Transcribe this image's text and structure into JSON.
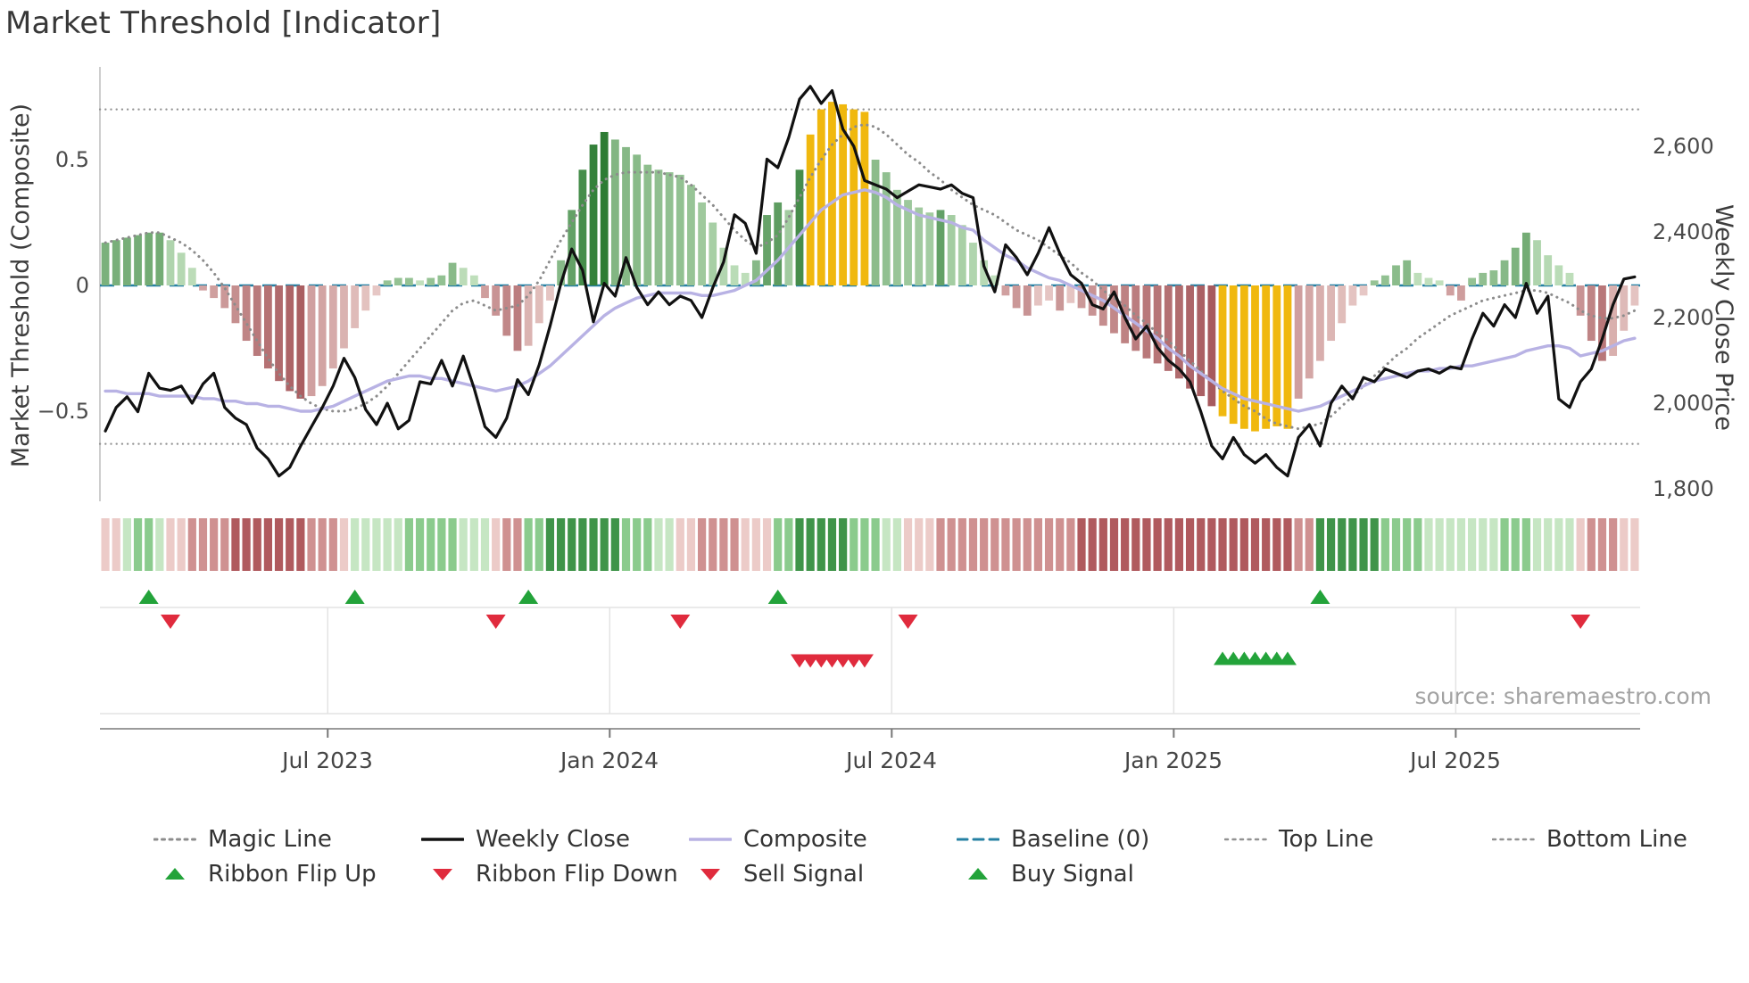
{
  "colors": {
    "background": "#ffffff",
    "weekly_close": "#111111",
    "composite_line": "#b8b2e4",
    "magic_line": "#8c8c8c",
    "baseline": "#2580a3",
    "band_lines": "#929292",
    "gold": "#f0b80e",
    "green_light": "#d4edcf",
    "green_dark": "#2d7c33",
    "red_light": "#f1dad6",
    "red_dark": "#9c474c",
    "signal_green": "#23a33a",
    "signal_red": "#e02b3d",
    "grid": "#e3e3e3",
    "spine": "#bdbdbd",
    "ribbon": {
      "R1": "#eccbc8",
      "R2": "#cf9191",
      "R3": "#b05a5e",
      "G1": "#c6e6c3",
      "G2": "#8bcb8d",
      "G3": "#3f9449"
    }
  },
  "chart_data": {
    "type": "bar+line",
    "title": "Market Threshold [Indicator]",
    "source_credit": "source: sharemaestro.com",
    "axes": {
      "left_label": "Market Threshold (Composite)",
      "right_label": "Weekly Close Price",
      "left_ticks": [
        "0.5",
        "0",
        "−0.5"
      ],
      "right_ticks": [
        "2,600",
        "2,400",
        "2,200",
        "2,000",
        "1,800"
      ],
      "x_ticks": [
        "Jul 2023",
        "Jan 2024",
        "Jul 2024",
        "Jan 2025",
        "Jul 2025"
      ]
    },
    "legend": {
      "row1": [
        "Magic Line",
        "Weekly Close",
        "Composite",
        "Baseline (0)",
        "Top Line",
        "Bottom Line"
      ],
      "row2": [
        "Ribbon Flip Up",
        "Ribbon Flip Down",
        "Sell Signal",
        "Buy Signal"
      ]
    },
    "n_weeks": 142,
    "x_tick_weeks": [
      21,
      47,
      73,
      99,
      125
    ],
    "top_line": 0.7,
    "bottom_line": -0.63,
    "baseline": 0,
    "left_axis_range": [
      -0.85,
      0.87
    ],
    "right_axis_range": [
      1760,
      2760
    ],
    "bars": [
      0.17,
      0.18,
      0.19,
      0.2,
      0.21,
      0.21,
      0.18,
      0.13,
      0.07,
      -0.02,
      -0.05,
      -0.09,
      -0.15,
      -0.22,
      -0.28,
      -0.33,
      -0.38,
      -0.42,
      -0.45,
      -0.44,
      -0.4,
      -0.33,
      -0.25,
      -0.17,
      -0.1,
      -0.04,
      0.02,
      0.03,
      0.03,
      0.02,
      0.03,
      0.04,
      0.09,
      0.07,
      0.04,
      -0.05,
      -0.12,
      -0.2,
      -0.26,
      -0.24,
      -0.15,
      -0.06,
      0.1,
      0.3,
      0.46,
      0.56,
      0.61,
      0.58,
      0.55,
      0.52,
      0.48,
      0.46,
      0.45,
      0.44,
      0.4,
      0.33,
      0.25,
      0.15,
      0.08,
      0.05,
      0.1,
      0.28,
      0.33,
      0.3,
      0.46,
      0.6,
      0.7,
      0.73,
      0.72,
      0.7,
      0.69,
      0.5,
      0.45,
      0.38,
      0.34,
      0.31,
      0.29,
      0.3,
      0.28,
      0.24,
      0.17,
      0.1,
      0.04,
      -0.04,
      -0.09,
      -0.12,
      -0.08,
      -0.06,
      -0.1,
      -0.07,
      -0.09,
      -0.12,
      -0.16,
      -0.19,
      -0.23,
      -0.26,
      -0.29,
      -0.31,
      -0.34,
      -0.37,
      -0.41,
      -0.44,
      -0.48,
      -0.52,
      -0.55,
      -0.57,
      -0.58,
      -0.57,
      -0.56,
      -0.57,
      -0.45,
      -0.37,
      -0.3,
      -0.22,
      -0.15,
      -0.08,
      -0.04,
      0.02,
      0.04,
      0.08,
      0.1,
      0.05,
      0.03,
      0.02,
      -0.04,
      -0.06,
      0.03,
      0.05,
      0.06,
      0.1,
      0.15,
      0.21,
      0.18,
      0.12,
      0.08,
      0.05,
      -0.12,
      -0.22,
      -0.3,
      -0.28,
      -0.18,
      -0.08
    ],
    "gold_weeks": [
      65,
      66,
      67,
      68,
      69,
      70,
      103,
      104,
      105,
      106,
      107,
      108,
      109
    ],
    "weekly_close": [
      1935,
      1990,
      2015,
      1980,
      2070,
      2035,
      2030,
      2040,
      2000,
      2045,
      2070,
      1990,
      1965,
      1950,
      1895,
      1870,
      1830,
      1850,
      1900,
      1945,
      1990,
      2040,
      2105,
      2060,
      1985,
      1950,
      2000,
      1940,
      1960,
      2050,
      2045,
      2100,
      2040,
      2110,
      2035,
      1945,
      1920,
      1965,
      2055,
      2020,
      2090,
      2180,
      2280,
      2360,
      2310,
      2190,
      2280,
      2250,
      2340,
      2270,
      2230,
      2260,
      2230,
      2250,
      2240,
      2200,
      2270,
      2330,
      2440,
      2420,
      2350,
      2570,
      2550,
      2620,
      2710,
      2740,
      2700,
      2730,
      2640,
      2600,
      2520,
      2510,
      2500,
      2480,
      2495,
      2510,
      2505,
      2500,
      2510,
      2490,
      2480,
      2320,
      2260,
      2370,
      2340,
      2300,
      2350,
      2410,
      2350,
      2300,
      2280,
      2230,
      2220,
      2260,
      2200,
      2150,
      2180,
      2130,
      2100,
      2080,
      2050,
      1980,
      1900,
      1870,
      1920,
      1880,
      1860,
      1880,
      1850,
      1830,
      1920,
      1950,
      1900,
      2000,
      2040,
      2010,
      2060,
      2050,
      2080,
      2070,
      2060,
      2075,
      2080,
      2070,
      2085,
      2080,
      2150,
      2210,
      2180,
      2230,
      2200,
      2280,
      2210,
      2250,
      2010,
      1990,
      2050,
      2080,
      2150,
      2230,
      2290,
      2295
    ],
    "magic_line": [
      0.17,
      0.18,
      0.19,
      0.2,
      0.21,
      0.21,
      0.19,
      0.17,
      0.14,
      0.1,
      0.05,
      -0.01,
      -0.08,
      -0.15,
      -0.22,
      -0.29,
      -0.35,
      -0.4,
      -0.44,
      -0.47,
      -0.49,
      -0.5,
      -0.5,
      -0.49,
      -0.47,
      -0.44,
      -0.4,
      -0.35,
      -0.3,
      -0.25,
      -0.2,
      -0.15,
      -0.1,
      -0.07,
      -0.06,
      -0.08,
      -0.1,
      -0.09,
      -0.08,
      -0.04,
      0.02,
      0.1,
      0.18,
      0.25,
      0.32,
      0.38,
      0.42,
      0.44,
      0.45,
      0.45,
      0.45,
      0.45,
      0.44,
      0.43,
      0.4,
      0.36,
      0.32,
      0.27,
      0.22,
      0.18,
      0.15,
      0.17,
      0.2,
      0.27,
      0.35,
      0.43,
      0.5,
      0.56,
      0.6,
      0.63,
      0.64,
      0.63,
      0.6,
      0.56,
      0.52,
      0.49,
      0.45,
      0.42,
      0.38,
      0.35,
      0.32,
      0.3,
      0.28,
      0.25,
      0.22,
      0.2,
      0.18,
      0.15,
      0.12,
      0.09,
      0.05,
      0.02,
      -0.02,
      -0.05,
      -0.08,
      -0.12,
      -0.15,
      -0.19,
      -0.22,
      -0.26,
      -0.3,
      -0.34,
      -0.38,
      -0.42,
      -0.45,
      -0.48,
      -0.5,
      -0.53,
      -0.55,
      -0.56,
      -0.57,
      -0.56,
      -0.55,
      -0.52,
      -0.48,
      -0.44,
      -0.4,
      -0.36,
      -0.32,
      -0.28,
      -0.25,
      -0.21,
      -0.18,
      -0.15,
      -0.12,
      -0.1,
      -0.08,
      -0.06,
      -0.05,
      -0.04,
      -0.03,
      -0.02,
      -0.02,
      -0.03,
      -0.05,
      -0.07,
      -0.1,
      -0.12,
      -0.13,
      -0.13,
      -0.12,
      -0.1
    ],
    "composite_line": [
      -0.42,
      -0.42,
      -0.43,
      -0.43,
      -0.43,
      -0.44,
      -0.44,
      -0.44,
      -0.44,
      -0.45,
      -0.45,
      -0.46,
      -0.46,
      -0.47,
      -0.47,
      -0.48,
      -0.48,
      -0.49,
      -0.5,
      -0.5,
      -0.49,
      -0.48,
      -0.46,
      -0.44,
      -0.42,
      -0.4,
      -0.38,
      -0.37,
      -0.36,
      -0.36,
      -0.37,
      -0.37,
      -0.38,
      -0.39,
      -0.4,
      -0.41,
      -0.42,
      -0.41,
      -0.4,
      -0.38,
      -0.35,
      -0.32,
      -0.28,
      -0.24,
      -0.2,
      -0.16,
      -0.12,
      -0.09,
      -0.07,
      -0.05,
      -0.04,
      -0.03,
      -0.03,
      -0.03,
      -0.03,
      -0.04,
      -0.04,
      -0.03,
      -0.02,
      0.0,
      0.02,
      0.06,
      0.1,
      0.15,
      0.2,
      0.25,
      0.3,
      0.33,
      0.36,
      0.37,
      0.38,
      0.37,
      0.35,
      0.32,
      0.3,
      0.28,
      0.27,
      0.26,
      0.25,
      0.23,
      0.22,
      0.18,
      0.15,
      0.12,
      0.1,
      0.07,
      0.05,
      0.03,
      0.02,
      0.0,
      -0.02,
      -0.04,
      -0.06,
      -0.09,
      -0.12,
      -0.15,
      -0.18,
      -0.21,
      -0.25,
      -0.28,
      -0.32,
      -0.35,
      -0.38,
      -0.41,
      -0.43,
      -0.45,
      -0.46,
      -0.47,
      -0.48,
      -0.49,
      -0.5,
      -0.49,
      -0.48,
      -0.46,
      -0.44,
      -0.42,
      -0.4,
      -0.38,
      -0.37,
      -0.36,
      -0.35,
      -0.34,
      -0.34,
      -0.33,
      -0.33,
      -0.32,
      -0.32,
      -0.31,
      -0.3,
      -0.29,
      -0.28,
      -0.26,
      -0.25,
      -0.24,
      -0.24,
      -0.25,
      -0.28,
      -0.27,
      -0.26,
      -0.24,
      -0.22,
      -0.21
    ],
    "ribbon": [
      "R1",
      "R1",
      "G1",
      "G2",
      "G2",
      "G1",
      "R1",
      "R1",
      "R2",
      "R2",
      "R2",
      "R2",
      "R3",
      "R3",
      "R3",
      "R3",
      "R3",
      "R3",
      "R3",
      "R2",
      "R2",
      "R2",
      "R1",
      "G1",
      "G1",
      "G1",
      "G1",
      "G1",
      "G2",
      "G2",
      "G2",
      "G2",
      "G2",
      "G1",
      "G1",
      "G1",
      "R1",
      "R2",
      "R2",
      "G2",
      "G2",
      "G3",
      "G3",
      "G3",
      "G3",
      "G3",
      "G3",
      "G3",
      "G2",
      "G2",
      "G2",
      "G1",
      "G1",
      "R1",
      "R1",
      "R2",
      "R2",
      "R2",
      "R2",
      "R1",
      "R1",
      "R1",
      "G2",
      "G2",
      "G3",
      "G3",
      "G3",
      "G3",
      "G3",
      "G2",
      "G2",
      "G2",
      "G1",
      "G1",
      "R1",
      "R1",
      "R1",
      "R2",
      "R2",
      "R2",
      "R2",
      "R2",
      "R2",
      "R2",
      "R2",
      "R2",
      "R2",
      "R2",
      "R2",
      "R2",
      "R3",
      "R3",
      "R3",
      "R3",
      "R3",
      "R3",
      "R3",
      "R3",
      "R3",
      "R3",
      "R3",
      "R3",
      "R3",
      "R3",
      "R3",
      "R3",
      "R3",
      "R3",
      "R3",
      "R3",
      "R2",
      "R2",
      "G3",
      "G3",
      "G3",
      "G3",
      "G3",
      "G3",
      "G2",
      "G2",
      "G2",
      "G2",
      "G1",
      "G1",
      "G1",
      "G1",
      "G1",
      "G1",
      "G1",
      "G2",
      "G2",
      "G2",
      "G1",
      "G1",
      "G1",
      "G1",
      "R1",
      "R2",
      "R2",
      "R2",
      "R1",
      "R1"
    ],
    "signals": {
      "flip_up": [
        4,
        23,
        39,
        62,
        112
      ],
      "flip_down": [
        6,
        36,
        53,
        74,
        136
      ],
      "sell": [
        64,
        65,
        66,
        67,
        68,
        69,
        70
      ],
      "buy": [
        103,
        104,
        105,
        106,
        107,
        108,
        109
      ]
    }
  }
}
